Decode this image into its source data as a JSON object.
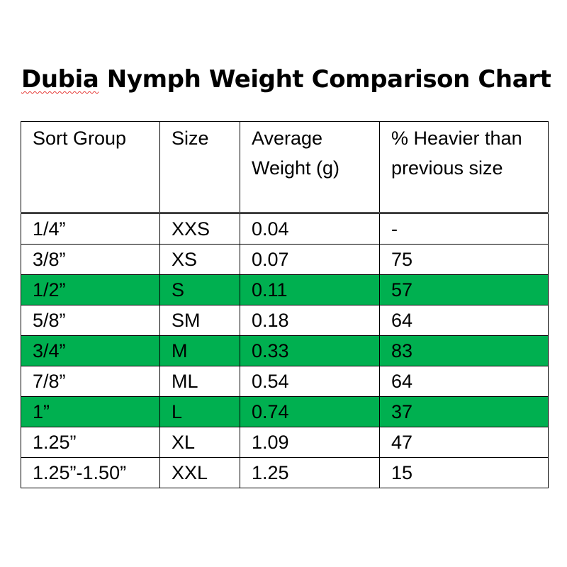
{
  "title": {
    "first_word": "Dubia",
    "rest": " Nymph Weight Comparison Chart"
  },
  "table": {
    "headers": [
      "Sort Group",
      "Size",
      "Average Weight (g)",
      "% Heavier than previous size"
    ],
    "rows": [
      {
        "group": "1/4”",
        "size": "XXS",
        "weight": "0.04",
        "heavier": "-",
        "highlight": false
      },
      {
        "group": "3/8”",
        "size": "XS",
        "weight": "0.07",
        "heavier": "75",
        "highlight": false
      },
      {
        "group": "1/2”",
        "size": "S",
        "weight": "0.11",
        "heavier": "57",
        "highlight": true
      },
      {
        "group": "5/8”",
        "size": "SM",
        "weight": "0.18",
        "heavier": "64",
        "highlight": false
      },
      {
        "group": "3/4”",
        "size": "M",
        "weight": "0.33",
        "heavier": "83",
        "highlight": true
      },
      {
        "group": "7/8”",
        "size": "ML",
        "weight": "0.54",
        "heavier": "64",
        "highlight": false
      },
      {
        "group": "1”",
        "size": "L",
        "weight": "0.74",
        "heavier": "37",
        "highlight": true
      },
      {
        "group": "1.25”",
        "size": "XL",
        "weight": "1.09",
        "heavier": "47",
        "highlight": false
      },
      {
        "group": "1.25”-1.50”",
        "size": "XXL",
        "weight": "1.25",
        "heavier": "15",
        "highlight": false
      }
    ]
  },
  "colors": {
    "highlight_row": "#00b050",
    "spellcheck_underline": "#e53935"
  }
}
